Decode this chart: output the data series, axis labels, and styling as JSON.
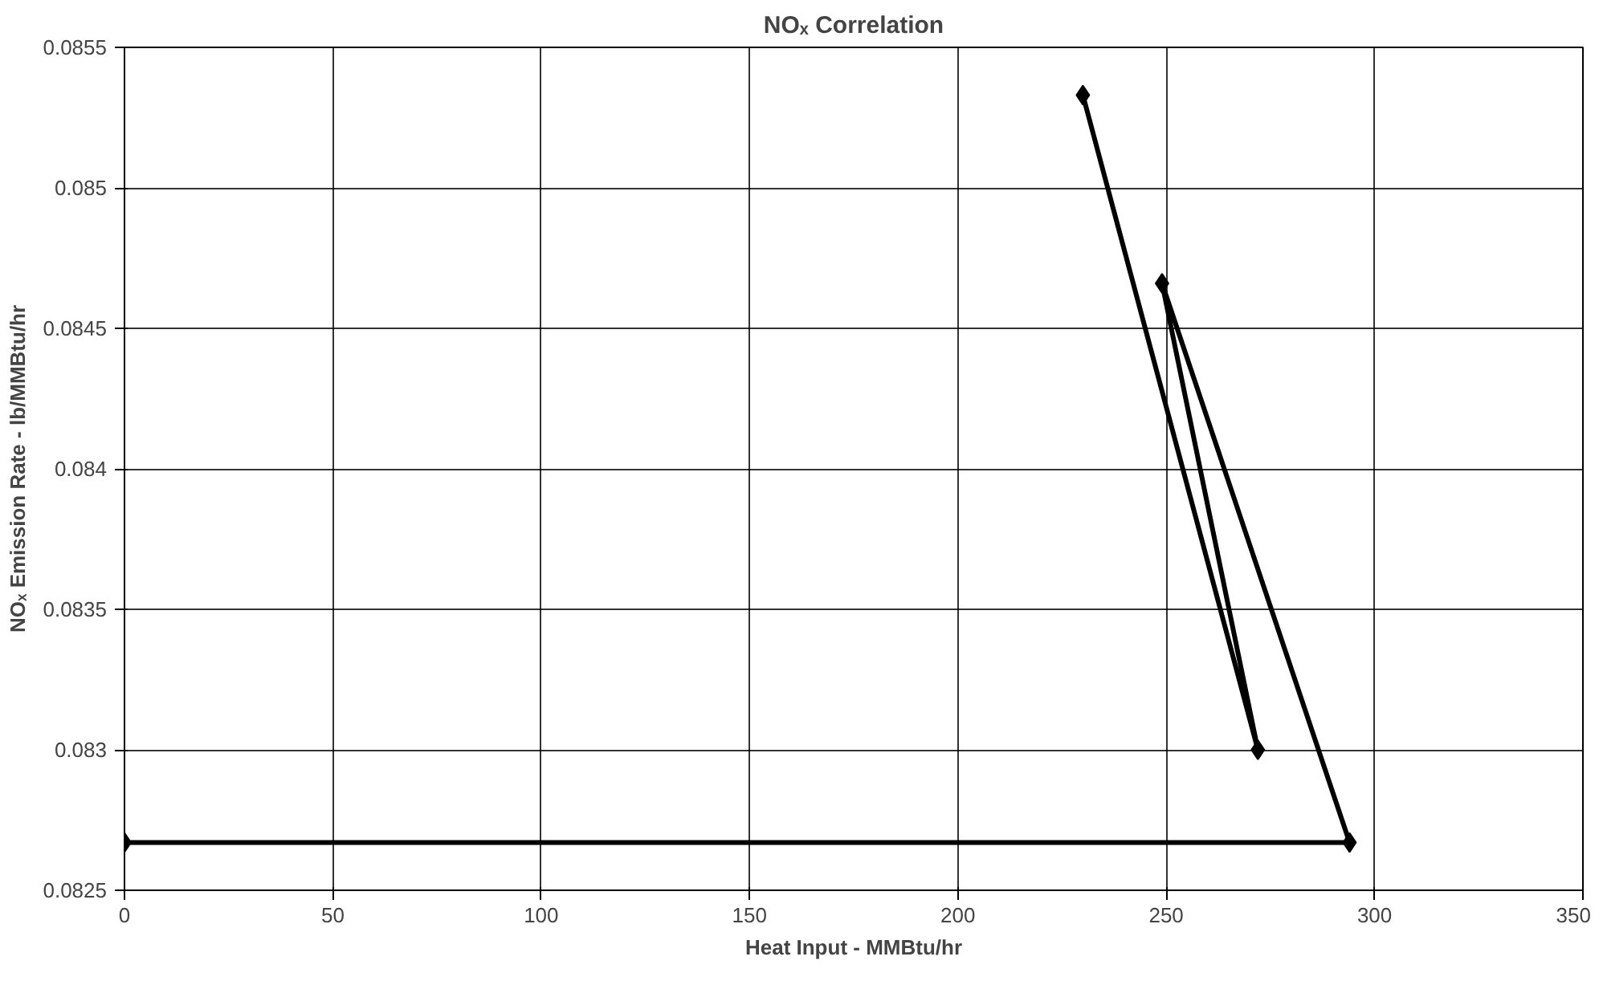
{
  "chart_data": {
    "type": "line",
    "title": "NOₓ Correlation",
    "xlabel": "Heat Input - MMBtu/hr",
    "ylabel": "NOₓ Emission Rate - lb/MMBtu/hr",
    "x": [
      230,
      272,
      249,
      294,
      0
    ],
    "series": [
      {
        "color": "#000000",
        "values": [
          0.08533,
          0.083,
          0.08466,
          0.08267,
          0.08267
        ]
      }
    ],
    "xlim": [
      0,
      350
    ],
    "xticks": [
      0,
      50,
      100,
      150,
      200,
      250,
      300,
      350
    ],
    "ylim": [
      0.0825,
      0.0855
    ],
    "yticks": [
      {
        "value": 0.0825,
        "label": "0.0825"
      },
      {
        "value": 0.083,
        "label": "0.083"
      },
      {
        "value": 0.0835,
        "label": "0.0835"
      },
      {
        "value": 0.084,
        "label": "0.084"
      },
      {
        "value": 0.0845,
        "label": "0.0845"
      },
      {
        "value": 0.085,
        "label": "0.085"
      },
      {
        "value": 0.0855,
        "label": "0.0855"
      }
    ],
    "grid": true,
    "marker": "diamond",
    "line_style": "solid"
  }
}
